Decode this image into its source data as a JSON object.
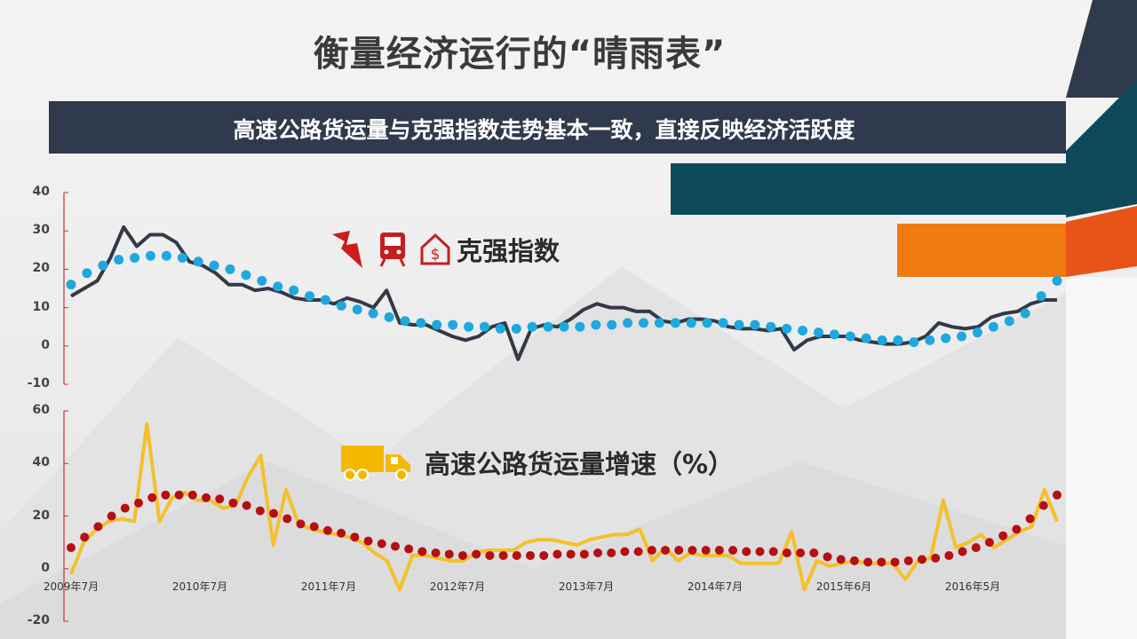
{
  "title": "衡量经济运行的“晴雨表”",
  "banner": "高速公路货运量与克强指数走势基本一致，直接反映经济活跃度",
  "colors": {
    "banner": "#2f3a4c",
    "teal": "#0f4a5c",
    "orange": "#f07a10",
    "keqiang_line": "#333a45",
    "keqiang_trend": "#1ea8e0",
    "freight_line": "#f5c02a",
    "freight_trend": "#b50f12",
    "axis": "#c0343a"
  },
  "legend_icons": [
    "lightning-icon",
    "train-icon",
    "house-dollar-icon",
    "truck-icon"
  ],
  "chart_data": [
    {
      "type": "line",
      "legend": "克强指数",
      "ylim": [
        -10,
        40
      ],
      "yticks": [
        "40",
        "30",
        "20",
        "10",
        "0",
        "-10"
      ],
      "grid": false,
      "series": [
        {
          "style": "solid",
          "values": [
            13,
            15,
            17,
            23,
            31,
            26,
            29,
            29,
            27,
            22,
            21,
            19,
            16,
            16,
            14.5,
            15,
            14,
            12.5,
            12,
            12,
            11,
            12.5,
            11.5,
            10,
            14.5,
            6,
            5.5,
            5.5,
            4,
            2.5,
            1.5,
            2.5,
            5,
            6,
            -3.5,
            4.5,
            5.5,
            5,
            7,
            9.5,
            11,
            10,
            10,
            9,
            9,
            6.5,
            6,
            7,
            7,
            6.5,
            5,
            4.5,
            4.5,
            4,
            4.5,
            -1,
            1.5,
            2.5,
            2.5,
            2.5,
            1.5,
            1,
            0.5,
            0.5,
            1,
            2.5,
            6,
            5,
            4.5,
            5,
            7.5,
            8.5,
            9,
            11,
            12,
            12
          ]
        },
        {
          "style": "dotted",
          "values": [
            16,
            19,
            21,
            22.5,
            23,
            23.5,
            23.5,
            23,
            22,
            21,
            20,
            18.5,
            17,
            15.5,
            14.5,
            13,
            12,
            10.5,
            9.5,
            8.5,
            7.5,
            6.5,
            6,
            5.5,
            5.5,
            5,
            5,
            4.5,
            4.5,
            5,
            5,
            5,
            5,
            5.5,
            5.5,
            6,
            6,
            6,
            6,
            6,
            6,
            6,
            5.5,
            5.5,
            5,
            4.5,
            4,
            3.5,
            3,
            2.5,
            2,
            1.5,
            1.5,
            1,
            1.5,
            2,
            2.5,
            3.5,
            5,
            6.5,
            8.5,
            13,
            17
          ]
        }
      ]
    },
    {
      "type": "line",
      "legend": "高速公路货运量增速（%）",
      "ylim": [
        -20,
        60
      ],
      "yticks": [
        "60",
        "40",
        "20",
        "0",
        "-20"
      ],
      "xticks": [
        "2009年7月",
        "2010年7月",
        "2011年7月",
        "2012年7月",
        "2013年7月",
        "2014年7月",
        "2015年6月",
        "2016年5月"
      ],
      "grid": false,
      "series": [
        {
          "style": "solid",
          "values": [
            -2,
            10,
            15,
            18,
            19,
            18,
            55,
            18,
            27,
            29,
            26,
            26,
            23,
            24,
            35,
            43,
            9,
            30,
            17,
            15,
            14,
            13,
            12,
            10,
            6,
            3,
            -8,
            5,
            5,
            4,
            3,
            3,
            6,
            7,
            7,
            7,
            10,
            11,
            11,
            10,
            9,
            11,
            12,
            13,
            13,
            15,
            3,
            8,
            3,
            6,
            5,
            5,
            5,
            2,
            2,
            2,
            2,
            14,
            -8,
            3,
            1,
            2,
            3,
            2,
            2,
            2,
            -4,
            3,
            4,
            26,
            8,
            10,
            13,
            8,
            11,
            14,
            16,
            30,
            18
          ]
        },
        {
          "style": "dotted",
          "values": [
            8,
            12,
            16,
            20,
            23,
            25,
            27,
            28,
            28,
            28,
            27,
            26.5,
            25,
            24,
            22,
            21,
            19,
            17,
            16,
            14.5,
            13.5,
            12,
            10.5,
            9.5,
            8.5,
            7.5,
            6.5,
            6,
            5.5,
            5,
            5.5,
            5,
            5,
            5,
            5,
            5,
            5.5,
            5.5,
            5.5,
            6,
            6,
            6.5,
            6.5,
            7,
            7,
            7,
            7,
            7,
            7,
            7,
            6.5,
            6.5,
            6.5,
            6,
            6,
            6,
            4.5,
            3.5,
            3,
            2.5,
            2.5,
            2.5,
            3,
            3.5,
            4,
            5,
            6.5,
            8,
            10,
            12.5,
            15,
            19,
            24,
            28
          ]
        }
      ]
    }
  ]
}
